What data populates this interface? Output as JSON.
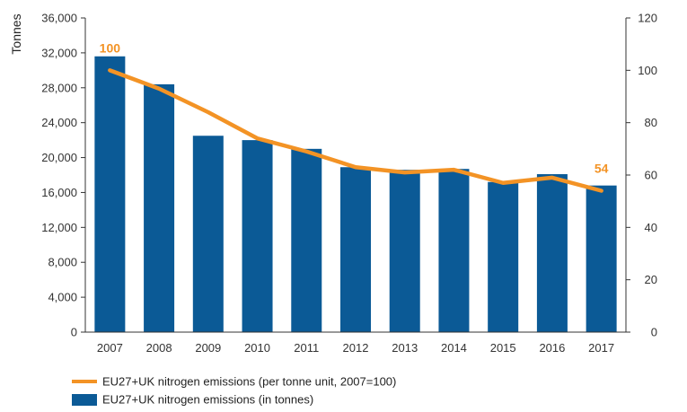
{
  "chart_data": {
    "type": "bar+line",
    "categories": [
      "2007",
      "2008",
      "2009",
      "2010",
      "2011",
      "2012",
      "2013",
      "2014",
      "2015",
      "2016",
      "2017"
    ],
    "series": [
      {
        "name": "EU27+UK nitrogen emissions (in tonnes)",
        "type": "bar",
        "axis": "left",
        "color": "#0b5a96",
        "values": [
          31600,
          28400,
          22500,
          22000,
          21000,
          18900,
          18600,
          18700,
          17200,
          18100,
          16800
        ]
      },
      {
        "name": "EU27+UK nitrogen emissions (per tonne unit, 2007=100)",
        "type": "line",
        "axis": "right",
        "color": "#f39325",
        "values": [
          100,
          93,
          84,
          74,
          69,
          63,
          61,
          62,
          57,
          59,
          54
        ]
      }
    ],
    "left_axis": {
      "label": "Tonnes",
      "ylim": [
        0,
        36000
      ],
      "ticks": [
        0,
        4000,
        8000,
        12000,
        16000,
        20000,
        24000,
        28000,
        32000,
        36000
      ],
      "tick_labels": [
        "0",
        "4,000",
        "8,000",
        "12,000",
        "16,000",
        "20,000",
        "24,000",
        "28,000",
        "32,000",
        "36,000"
      ]
    },
    "right_axis": {
      "label": "",
      "ylim": [
        0,
        120
      ],
      "ticks": [
        0,
        20,
        40,
        60,
        80,
        100,
        120
      ],
      "tick_labels": [
        "0",
        "20",
        "40",
        "60",
        "80",
        "100",
        "120"
      ]
    },
    "data_labels": [
      {
        "series": 1,
        "index": 0,
        "text": "100"
      },
      {
        "series": 1,
        "index": 10,
        "text": "54"
      }
    ],
    "legend": {
      "placement": "bottom-left",
      "items": [
        {
          "label": "EU27+UK nitrogen emissions (per tonne unit, 2007=100)",
          "symbol": "line",
          "color": "#f39325"
        },
        {
          "label": "EU27+UK nitrogen emissions (in tonnes)",
          "symbol": "box",
          "color": "#0b5a96"
        }
      ]
    },
    "grid": false,
    "title": ""
  }
}
